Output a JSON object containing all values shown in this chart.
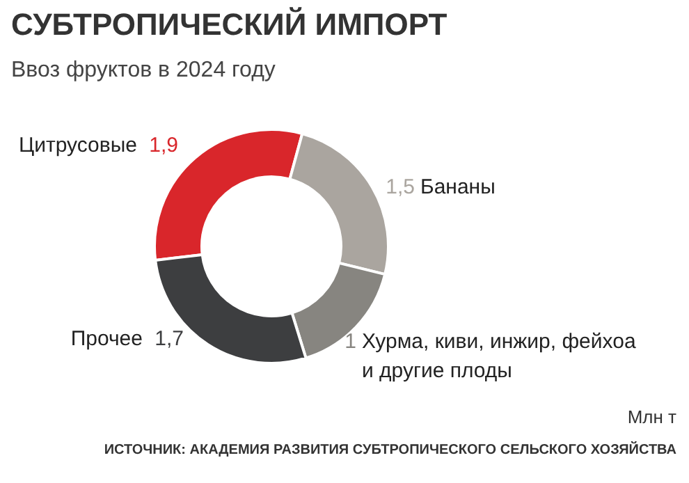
{
  "chart_data": {
    "type": "donut",
    "title": "СУБТРОПИЧЕСКИЙ ИМПОРТ",
    "subtitle": "Ввоз фруктов в 2024 году",
    "categories": [
      "Цитрусовые",
      "Бананы",
      "Хурма, киви, инжир, фейхоа\nи другие плоды",
      "Прочее"
    ],
    "values": [
      1.9,
      1.5,
      1,
      1.7
    ],
    "value_labels": [
      "1,9",
      "1,5",
      "1",
      "1,7"
    ],
    "colors": [
      "#d9262b",
      "#aaa59f",
      "#878580",
      "#3d3e40"
    ],
    "annotations": [
      "Млн т",
      "ИСТОЧНИК: АКАДЕМИЯ РАЗВИТИЯ СУБТРОПИЧЕСКОГО СЕЛЬСКОГО ХОЗЯЙСТВА"
    ]
  }
}
